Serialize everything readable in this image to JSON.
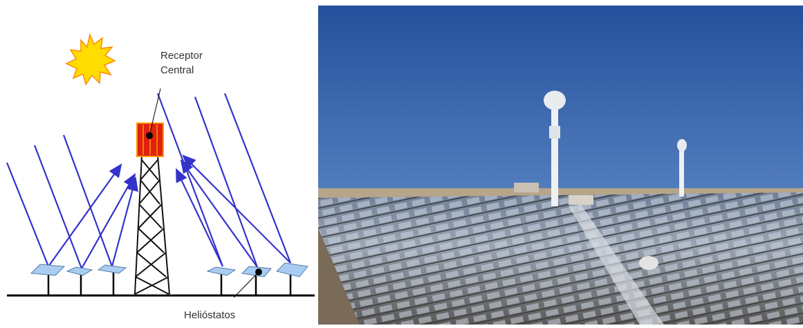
{
  "diagram": {
    "receptor_label": {
      "line1": "Receptor",
      "line2": "Central"
    },
    "heliostat_label": "Helióstatos"
  }
}
